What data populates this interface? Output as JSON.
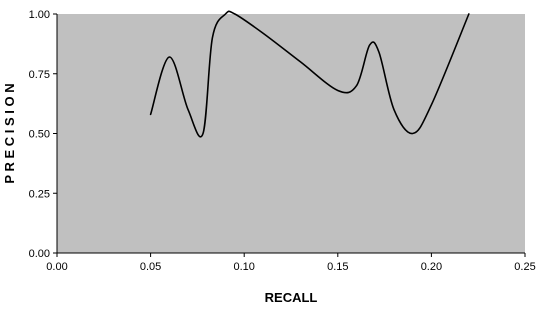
{
  "chart_data": {
    "type": "line",
    "title": "",
    "xlabel": "RECALL",
    "ylabel": "P R E C I S I O N",
    "xlim": [
      0.0,
      0.25
    ],
    "ylim": [
      0.0,
      1.0
    ],
    "x_ticks": [
      "0.00",
      "0.05",
      "0.10",
      "0.15",
      "0.20",
      "0.25"
    ],
    "y_ticks": [
      "0.00",
      "0.25",
      "0.50",
      "0.75",
      "1.00"
    ],
    "grid": false,
    "legend": "none",
    "plot_background": "#c0c0c0",
    "line_color": "#000000",
    "series": [
      {
        "x": [
          0.05,
          0.06,
          0.07,
          0.078,
          0.083,
          0.09,
          0.095,
          0.11,
          0.13,
          0.15,
          0.16,
          0.167,
          0.172,
          0.18,
          0.19,
          0.2,
          0.22
        ],
        "y": [
          0.58,
          0.82,
          0.6,
          0.5,
          0.9,
          1.0,
          1.0,
          0.92,
          0.8,
          0.68,
          0.7,
          0.87,
          0.84,
          0.6,
          0.5,
          0.62,
          1.0
        ]
      }
    ]
  }
}
